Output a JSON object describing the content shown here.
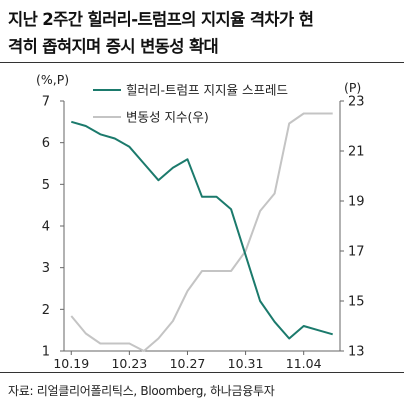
{
  "title_line1": "지난 2주간 힐러리-트럼프의 지지율 격차가 현",
  "title_line2": "격히 좁혀지며 증시 변동성 확대",
  "source": "자료: 리얼클리어폴리틱스, Bloomberg, 하나금융투자",
  "colors": {
    "spread": "#1b7a6c",
    "vol": "#c4c4c4",
    "axis": "#666666"
  },
  "chart_data": {
    "type": "line",
    "x_ticks": [
      "10.19",
      "10.23",
      "10.27",
      "10.31",
      "11.04"
    ],
    "y_left": {
      "unit": "(%,P)",
      "range": [
        1,
        7
      ],
      "ticks": [
        1,
        2,
        3,
        4,
        5,
        6,
        7
      ]
    },
    "y_right": {
      "unit": "(P)",
      "range": [
        13,
        23
      ],
      "ticks": [
        13,
        15,
        17,
        19,
        21,
        23
      ]
    },
    "legend_position": "top-center",
    "series": [
      {
        "name": "힐러리-트럼프 지지율 스프레드",
        "axis": "left",
        "x": [
          "10.19",
          "10.20",
          "10.21",
          "10.22",
          "10.23",
          "10.24",
          "10.25",
          "10.26",
          "10.27",
          "10.28",
          "10.29",
          "10.30",
          "10.31",
          "11.01",
          "11.02",
          "11.03",
          "11.04",
          "11.05",
          "11.06"
        ],
        "values": [
          6.5,
          6.4,
          6.2,
          6.1,
          5.9,
          5.5,
          5.1,
          5.4,
          5.6,
          4.7,
          4.7,
          4.4,
          3.3,
          2.2,
          1.7,
          1.3,
          1.6,
          1.5,
          1.4
        ]
      },
      {
        "name": "변동성 지수(우)",
        "axis": "right",
        "x": [
          "10.19",
          "10.20",
          "10.21",
          "10.22",
          "10.23",
          "10.24",
          "10.25",
          "10.26",
          "10.27",
          "10.28",
          "10.29",
          "10.30",
          "10.31",
          "11.01",
          "11.02",
          "11.03",
          "11.04",
          "11.05",
          "11.06"
        ],
        "values": [
          14.4,
          13.7,
          13.3,
          13.3,
          13.3,
          13.0,
          13.5,
          14.2,
          15.4,
          16.2,
          16.2,
          16.2,
          17.0,
          18.6,
          19.3,
          22.1,
          22.5,
          22.5,
          22.5
        ]
      }
    ]
  }
}
